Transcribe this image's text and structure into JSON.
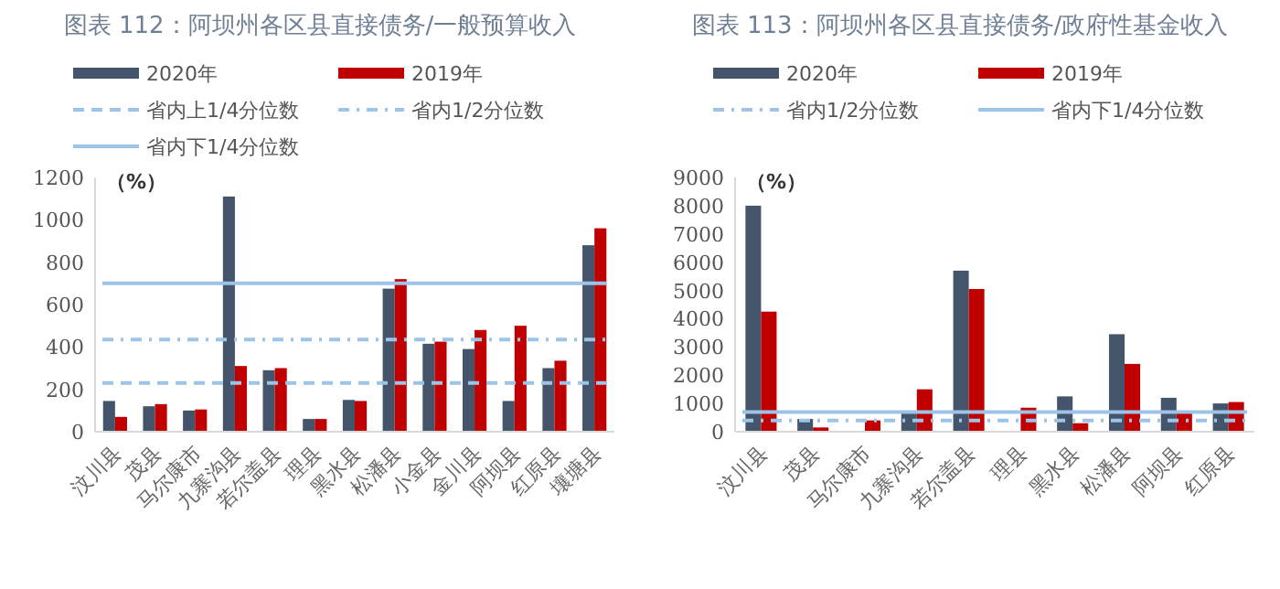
{
  "chart_data": [
    {
      "type": "bar",
      "title": "图表 112：阿坝州各区县直接债务/一般预算收入",
      "ylabel": "（%）",
      "legend": "top",
      "grid": false,
      "categories": [
        "汶川县",
        "茂县",
        "马尔康市",
        "九寨沟县",
        "若尔盖县",
        "理县",
        "黑水县",
        "松潘县",
        "小金县",
        "金川县",
        "阿坝县",
        "红原县",
        "壤塘县"
      ],
      "series": [
        {
          "name": "2020年",
          "color": "#44546a",
          "values": [
            145,
            120,
            100,
            1110,
            290,
            60,
            150,
            675,
            415,
            390,
            145,
            300,
            880
          ]
        },
        {
          "name": "2019年",
          "color": "#c00000",
          "values": [
            70,
            130,
            105,
            310,
            300,
            60,
            145,
            720,
            425,
            480,
            500,
            335,
            960
          ]
        }
      ],
      "ref_lines": [
        {
          "axis": "y",
          "value": 230,
          "label": "省内上1/4分位数",
          "color": "#9dc3e6",
          "line_style": "dashed"
        },
        {
          "axis": "y",
          "value": 435,
          "label": "省内1/2分位数",
          "color": "#9dc3e6",
          "line_style": "dashdot"
        },
        {
          "axis": "y",
          "value": 700,
          "label": "省内下1/4分位数",
          "color": "#9dc3e6",
          "line_style": "solid"
        }
      ],
      "ylim": [
        0,
        1200
      ],
      "yticks": [
        0,
        200,
        400,
        600,
        800,
        1000,
        1200
      ]
    },
    {
      "type": "bar",
      "title": "图表 113：阿坝州各区县直接债务/政府性基金收入",
      "ylabel": "（%）",
      "legend": "top",
      "grid": false,
      "categories": [
        "汶川县",
        "茂县",
        "马尔康市",
        "九寨沟县",
        "若尔盖县",
        "理县",
        "黑水县",
        "松潘县",
        "阿坝县",
        "红原县"
      ],
      "series": [
        {
          "name": "2020年",
          "color": "#44546a",
          "values": [
            8000,
            450,
            null,
            650,
            5700,
            null,
            1250,
            3450,
            1200,
            1000
          ]
        },
        {
          "name": "2019年",
          "color": "#c00000",
          "values": [
            4250,
            150,
            400,
            1500,
            5050,
            850,
            300,
            2400,
            650,
            1050
          ]
        }
      ],
      "ref_lines": [
        {
          "axis": "y",
          "value": 400,
          "label": "省内1/2分位数",
          "color": "#9dc3e6",
          "line_style": "dashdot"
        },
        {
          "axis": "y",
          "value": 700,
          "label": "省内下1/4分位数",
          "color": "#9dc3e6",
          "line_style": "solid"
        }
      ],
      "ylim": [
        0,
        9000
      ],
      "yticks": [
        0,
        1000,
        2000,
        3000,
        4000,
        5000,
        6000,
        7000,
        8000,
        9000
      ]
    }
  ]
}
